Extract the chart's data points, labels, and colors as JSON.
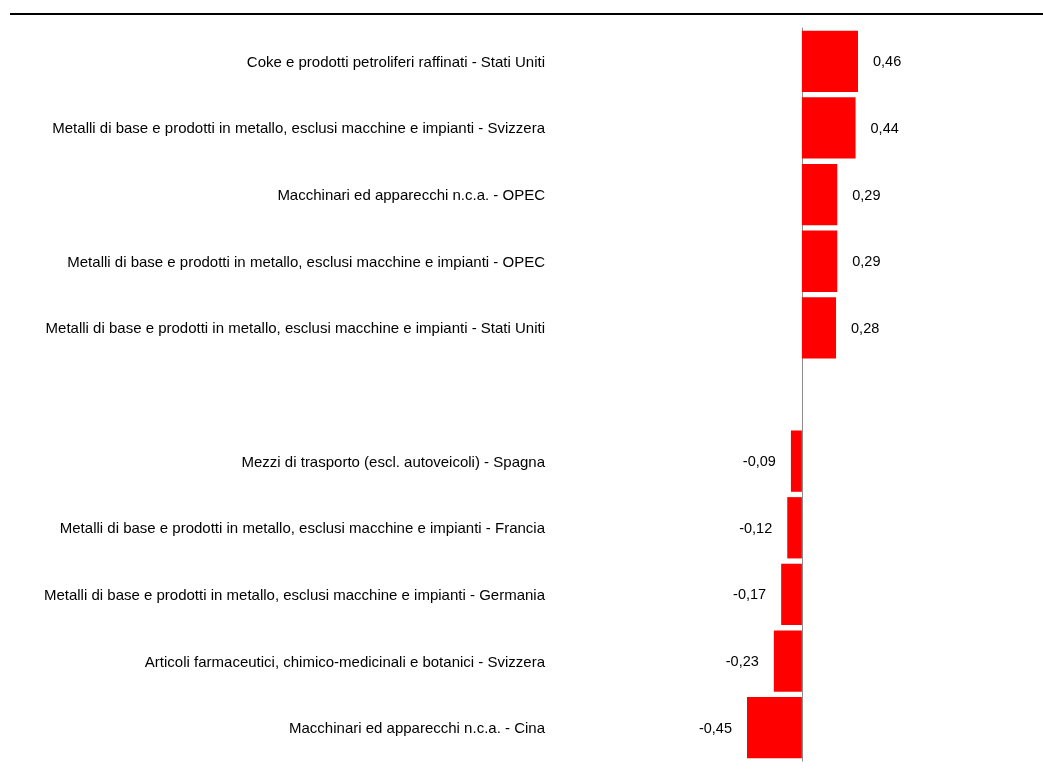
{
  "chart_data": {
    "type": "bar",
    "orientation": "horizontal",
    "categories": [
      "Coke e prodotti petroliferi raffinati - Stati Uniti",
      "Metalli di base e prodotti in metallo, esclusi macchine e impianti - Svizzera",
      "Macchinari ed apparecchi n.c.a. - OPEC",
      "Metalli di base e prodotti in metallo, esclusi macchine e impianti - OPEC",
      "Metalli di base e prodotti in metallo, esclusi macchine e impianti - Stati Uniti",
      null,
      "Mezzi di trasporto (escl. autoveicoli) - Spagna",
      "Metalli di base e prodotti in metallo, esclusi macchine e impianti - Francia",
      "Metalli di base e prodotti in metallo, esclusi macchine e impianti - Germania",
      "Articoli farmaceutici, chimico-medicinali e botanici - Svizzera",
      "Macchinari ed apparecchi n.c.a. - Cina"
    ],
    "values": [
      0.46,
      0.44,
      0.29,
      0.29,
      0.28,
      null,
      -0.09,
      -0.12,
      -0.17,
      -0.23,
      -0.45
    ],
    "value_labels": [
      "0,46",
      "0,44",
      "0,29",
      "0,29",
      "0,28",
      null,
      "-0,09",
      "-0,12",
      "-0,17",
      "-0,23",
      "-0,45"
    ],
    "color": "#ff0000",
    "tick_labels": "y"
  }
}
